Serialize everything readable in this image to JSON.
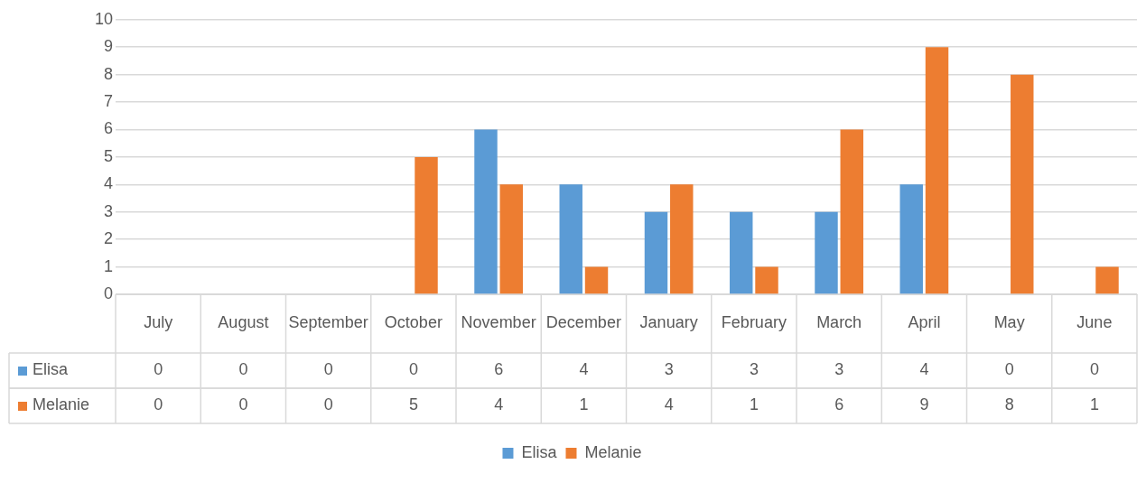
{
  "chart_data": {
    "type": "bar",
    "categories": [
      "July",
      "August",
      "September",
      "October",
      "November",
      "December",
      "January",
      "February",
      "March",
      "April",
      "May",
      "June"
    ],
    "series": [
      {
        "name": "Elisa",
        "color": "#5b9bd5",
        "values": [
          0,
          0,
          0,
          0,
          6,
          4,
          3,
          3,
          3,
          4,
          0,
          0
        ]
      },
      {
        "name": "Melanie",
        "color": "#ed7d31",
        "values": [
          0,
          0,
          0,
          5,
          4,
          1,
          4,
          1,
          6,
          9,
          8,
          1
        ]
      }
    ],
    "ylim": [
      0,
      10
    ],
    "yticks": [
      0,
      1,
      2,
      3,
      4,
      5,
      6,
      7,
      8,
      9,
      10
    ],
    "grid": "y",
    "legend": "bottom",
    "data_labels": true
  }
}
